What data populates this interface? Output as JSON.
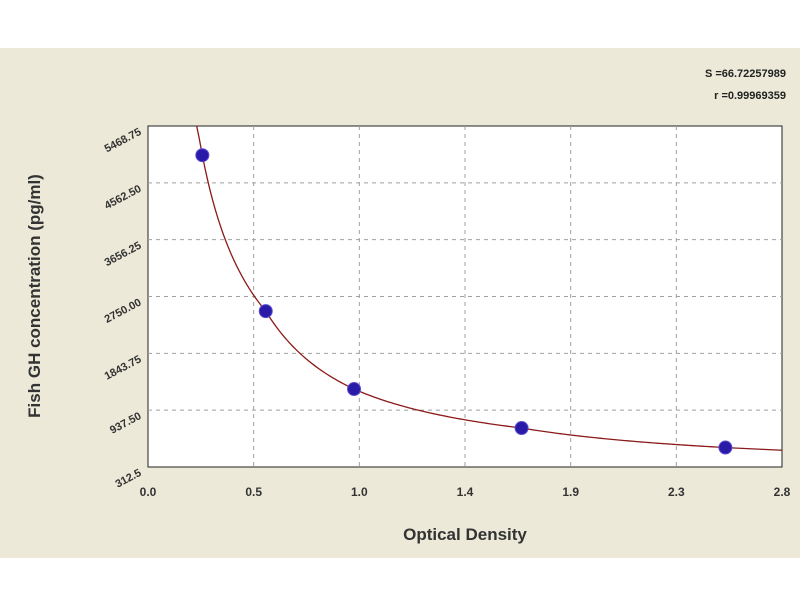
{
  "chart_data": {
    "type": "scatter",
    "xlabel": "Optical Density",
    "ylabel": "Fish GH concentration (pg/ml)",
    "x_ticks": [
      "0.0",
      "0.5",
      "1.0",
      "1.4",
      "1.9",
      "2.3",
      "2.8"
    ],
    "y_ticks": [
      "312.5",
      "937.50",
      "1843.75",
      "2750.00",
      "3656.25",
      "4562.50",
      "5468.75"
    ],
    "xlim": [
      0,
      2.8
    ],
    "ylim": [
      0,
      5468.75
    ],
    "grid": true,
    "points": [
      {
        "x": 0.24,
        "y": 5000
      },
      {
        "x": 0.52,
        "y": 2500
      },
      {
        "x": 0.91,
        "y": 1250
      },
      {
        "x": 1.65,
        "y": 625
      },
      {
        "x": 2.55,
        "y": 312.5
      }
    ],
    "fit_curve": {
      "type": "line",
      "name": ""
    },
    "stats": {
      "s": "S =66.72257989",
      "r": "r =0.99969359"
    },
    "colors": {
      "background": "#ece9d8",
      "plot_area": "#ffffff",
      "curve": "#8b1a1a",
      "points": "#2a1aa8",
      "grid": "#a0a0a0"
    }
  }
}
